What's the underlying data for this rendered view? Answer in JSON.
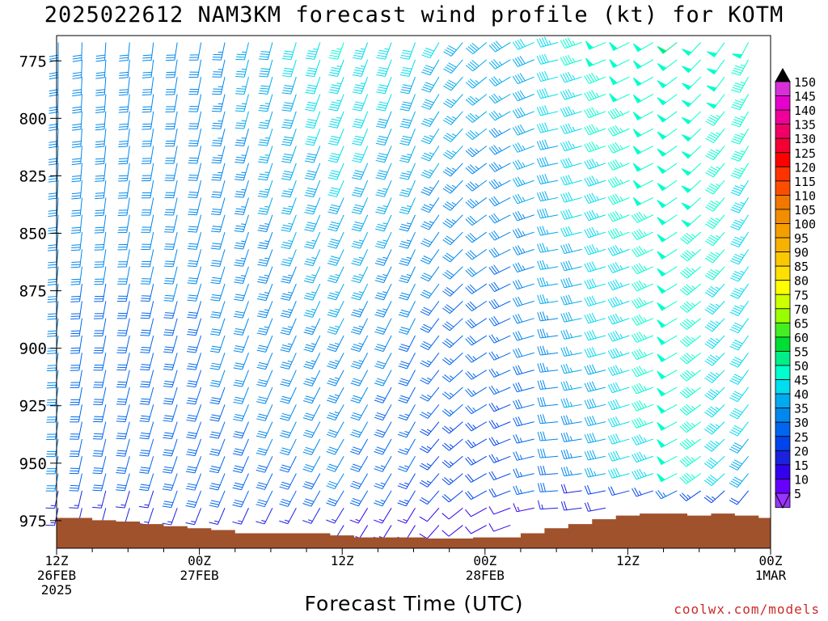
{
  "title": "2025022612 NAM3KM forecast wind profile (kt) for KOTM",
  "credit": "coolwx.com/models",
  "chart_data": {
    "type": "wind-barb time-height section",
    "title": "2025022612 NAM3KM forecast wind profile (kt) for KOTM",
    "xlabel": "Forecast Time (UTC)",
    "ylabel": "",
    "y_units": "hPa",
    "y_axis_reversed": true,
    "ylim": [
      987,
      764
    ],
    "xlim_hours": [
      0,
      60
    ],
    "y_ticks": [
      775,
      800,
      825,
      850,
      875,
      900,
      925,
      950,
      975
    ],
    "x_ticks": [
      {
        "hour": 0,
        "lines": [
          "12Z",
          "26FEB",
          "2025"
        ]
      },
      {
        "hour": 12,
        "lines": [
          "00Z",
          "27FEB"
        ]
      },
      {
        "hour": 24,
        "lines": [
          "12Z"
        ]
      },
      {
        "hour": 36,
        "lines": [
          "00Z",
          "28FEB"
        ]
      },
      {
        "hour": 48,
        "lines": [
          "12Z"
        ]
      },
      {
        "hour": 60,
        "lines": [
          "00Z",
          "1MAR"
        ]
      }
    ],
    "level_spacing_hPa": 7.5,
    "time_step_hours": 2,
    "wind_speed_keyframes_kt": [
      {
        "hour": 0,
        "low": 30,
        "high": 30
      },
      {
        "hour": 12,
        "low": 28,
        "high": 32
      },
      {
        "hour": 24,
        "low": 28,
        "high": 45
      },
      {
        "hour": 32,
        "low": 20,
        "high": 40
      },
      {
        "hour": 38,
        "low": 20,
        "high": 38
      },
      {
        "hour": 46,
        "low": 36,
        "high": 48
      },
      {
        "hour": 52,
        "low": 48,
        "high": 50
      },
      {
        "hour": 60,
        "low": 35,
        "high": 47
      }
    ],
    "wind_direction_keyframes_deg": [
      {
        "hour": 0,
        "dir": 180
      },
      {
        "hour": 12,
        "dir": 190
      },
      {
        "hour": 24,
        "dir": 200
      },
      {
        "hour": 30,
        "dir": 200
      },
      {
        "hour": 36,
        "dir": 230
      },
      {
        "hour": 42,
        "dir": 255
      },
      {
        "hour": 50,
        "dir": 240
      },
      {
        "hour": 60,
        "dir": 200
      }
    ],
    "surface_pressure_hPa": [
      {
        "hour": 0,
        "p": 973.8
      },
      {
        "hour": 2,
        "p": 973.8
      },
      {
        "hour": 4,
        "p": 974.8
      },
      {
        "hour": 6,
        "p": 975.4
      },
      {
        "hour": 8,
        "p": 976.5
      },
      {
        "hour": 10,
        "p": 977.4
      },
      {
        "hour": 12,
        "p": 978.3
      },
      {
        "hour": 14,
        "p": 979.1
      },
      {
        "hour": 16,
        "p": 980.5
      },
      {
        "hour": 18,
        "p": 980.5
      },
      {
        "hour": 20,
        "p": 980.5
      },
      {
        "hour": 22,
        "p": 980.5
      },
      {
        "hour": 24,
        "p": 981.4
      },
      {
        "hour": 26,
        "p": 982.3
      },
      {
        "hour": 28,
        "p": 982.3
      },
      {
        "hour": 30,
        "p": 982.3
      },
      {
        "hour": 32,
        "p": 982.8
      },
      {
        "hour": 34,
        "p": 982.8
      },
      {
        "hour": 36,
        "p": 982.3
      },
      {
        "hour": 38,
        "p": 982.3
      },
      {
        "hour": 40,
        "p": 980.5
      },
      {
        "hour": 42,
        "p": 978.3
      },
      {
        "hour": 44,
        "p": 976.5
      },
      {
        "hour": 46,
        "p": 974.4
      },
      {
        "hour": 48,
        "p": 972.8
      },
      {
        "hour": 50,
        "p": 971.9
      },
      {
        "hour": 52,
        "p": 971.9
      },
      {
        "hour": 54,
        "p": 972.8
      },
      {
        "hour": 56,
        "p": 971.9
      },
      {
        "hour": 58,
        "p": 972.8
      },
      {
        "hour": 60,
        "p": 973.8
      }
    ],
    "colorbar": {
      "labels": [
        150,
        145,
        140,
        135,
        130,
        125,
        120,
        115,
        110,
        105,
        100,
        95,
        90,
        85,
        80,
        75,
        70,
        65,
        60,
        55,
        50,
        45,
        40,
        35,
        30,
        25,
        20,
        15,
        10,
        5
      ],
      "colors": [
        "#d92fd9",
        "#e600cc",
        "#ee0099",
        "#f00066",
        "#f50033",
        "#ff0000",
        "#ff3300",
        "#ff4d00",
        "#f07800",
        "#f28c00",
        "#f59e00",
        "#f7b200",
        "#fac800",
        "#fde000",
        "#ffff00",
        "#ccff00",
        "#99ff00",
        "#44ee22",
        "#00dd33",
        "#00ee88",
        "#00ffcc",
        "#00ddee",
        "#00aaee",
        "#0088ee",
        "#0066ee",
        "#0044ee",
        "#1a22dd",
        "#3300ee",
        "#6600ff",
        "#9933ff"
      ]
    },
    "terrain_color": "#a0522d"
  }
}
